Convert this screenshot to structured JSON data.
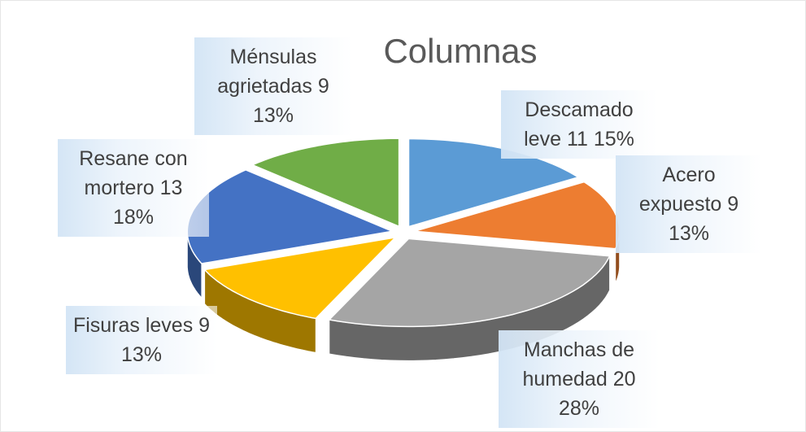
{
  "chart_data": {
    "type": "pie",
    "title": "Columnas",
    "categories": [
      "Descamado leve",
      "Acero expuesto",
      "Manchas de humedad",
      "Fisuras leves",
      "Resane con mortero",
      "Ménsulas agrietadas"
    ],
    "values": [
      11,
      9,
      20,
      9,
      13,
      9
    ],
    "percent_labels": [
      "15%",
      "13%",
      "28%",
      "13%",
      "18%",
      "13%"
    ],
    "colors": [
      "#5b9bd5",
      "#ed7d31",
      "#a5a5a5",
      "#ffc000",
      "#4472c4",
      "#70ad47"
    ]
  }
}
